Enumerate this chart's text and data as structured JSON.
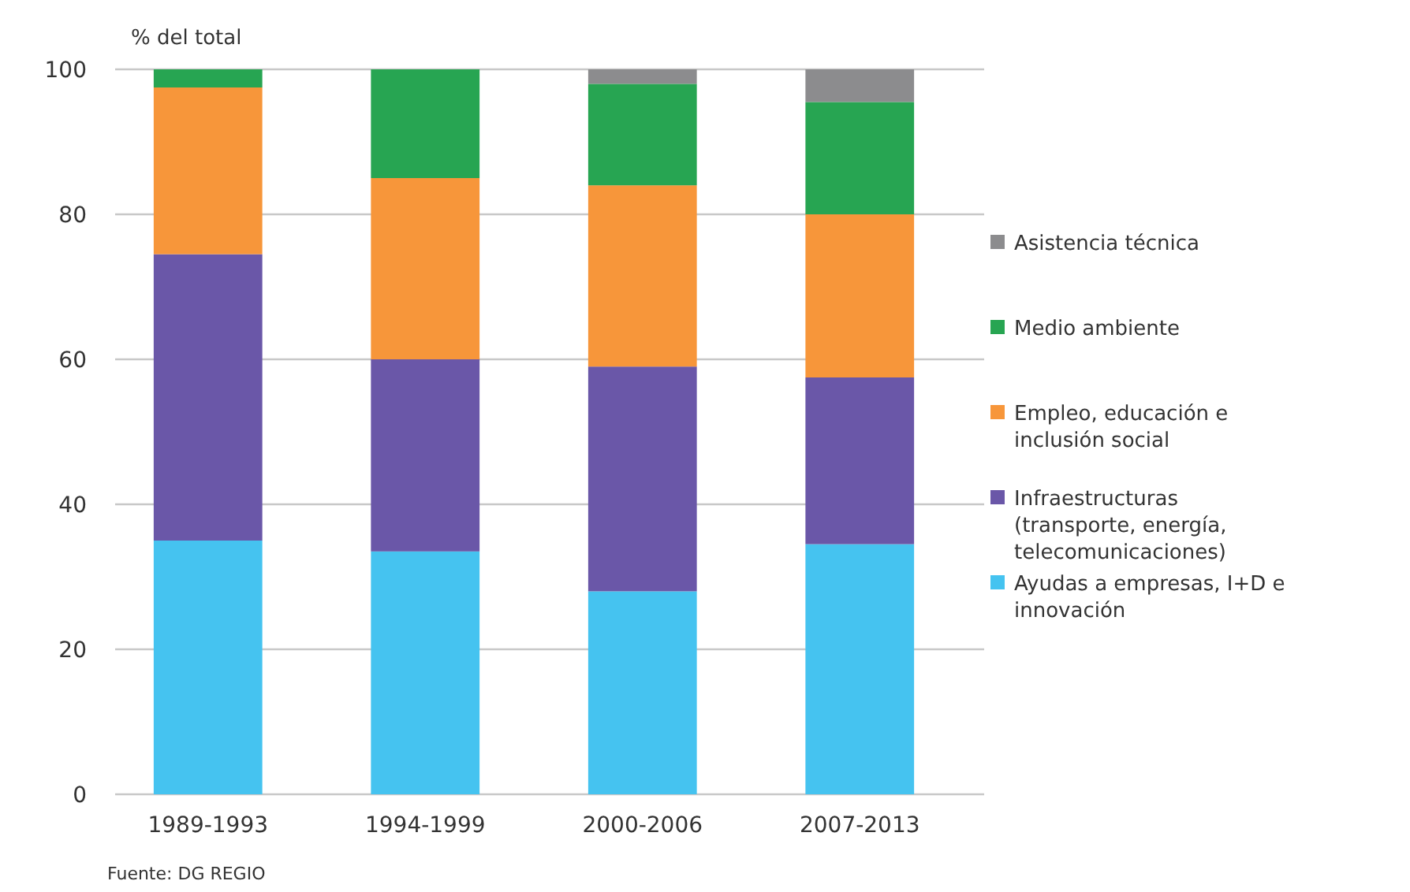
{
  "chart_data": {
    "type": "bar",
    "stacked": true,
    "ylabel": "% del total",
    "categories": [
      "1989-1993",
      "1994-1999",
      "2000-2006",
      "2007-2013"
    ],
    "series": [
      {
        "name": "Ayudas a empresas, I+D e innovación",
        "color": "#45c3f0",
        "values": [
          35,
          33.5,
          28,
          34.5
        ]
      },
      {
        "name": "Infraestructuras (transporte, energía, telecomunicaciones)",
        "color": "#6a57a8",
        "values": [
          39.5,
          26.5,
          31,
          23
        ]
      },
      {
        "name": "Empleo, educación e inclusión social",
        "color": "#f7963a",
        "values": [
          23,
          25,
          25,
          22.5
        ]
      },
      {
        "name": "Medio ambiente",
        "color": "#27a552",
        "values": [
          2.5,
          15,
          14,
          15.5
        ]
      },
      {
        "name": "Asistencia técnica",
        "color": "#8c8c8e",
        "values": [
          0,
          0,
          2,
          4.5
        ]
      }
    ],
    "ylim": [
      0,
      100
    ],
    "yticks": [
      0,
      20,
      40,
      60,
      80,
      100
    ],
    "grid": "y",
    "legend": "right",
    "annotations": [
      "Fuente: DG REGIO"
    ]
  }
}
